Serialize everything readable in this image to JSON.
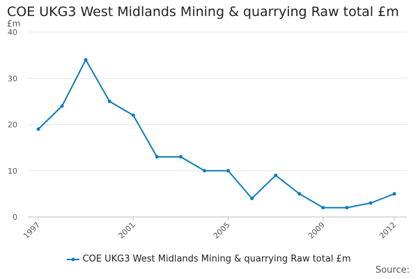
{
  "chart_data": {
    "type": "line",
    "title": "COE UKG3 West Midlands Mining & quarrying Raw total £m",
    "ylabel": "£m",
    "xlabel": "",
    "ylim": [
      0,
      40
    ],
    "yticks": [
      0,
      10,
      20,
      30,
      40
    ],
    "xticks": [
      1997,
      2001,
      2005,
      2009,
      2012
    ],
    "x": [
      1997,
      1998,
      1999,
      2000,
      2001,
      2002,
      2003,
      2004,
      2005,
      2006,
      2007,
      2008,
      2009,
      2010,
      2011,
      2012
    ],
    "series": [
      {
        "name": "COE UKG3 West Midlands Mining & quarrying Raw total £m",
        "values": [
          19,
          24,
          34,
          25,
          22,
          13,
          13,
          10,
          10,
          4,
          9,
          5,
          2,
          2,
          3,
          5
        ],
        "color": "#0b7bbd"
      }
    ],
    "grid": true,
    "legend_position": "bottom"
  },
  "source_label": "Source:"
}
